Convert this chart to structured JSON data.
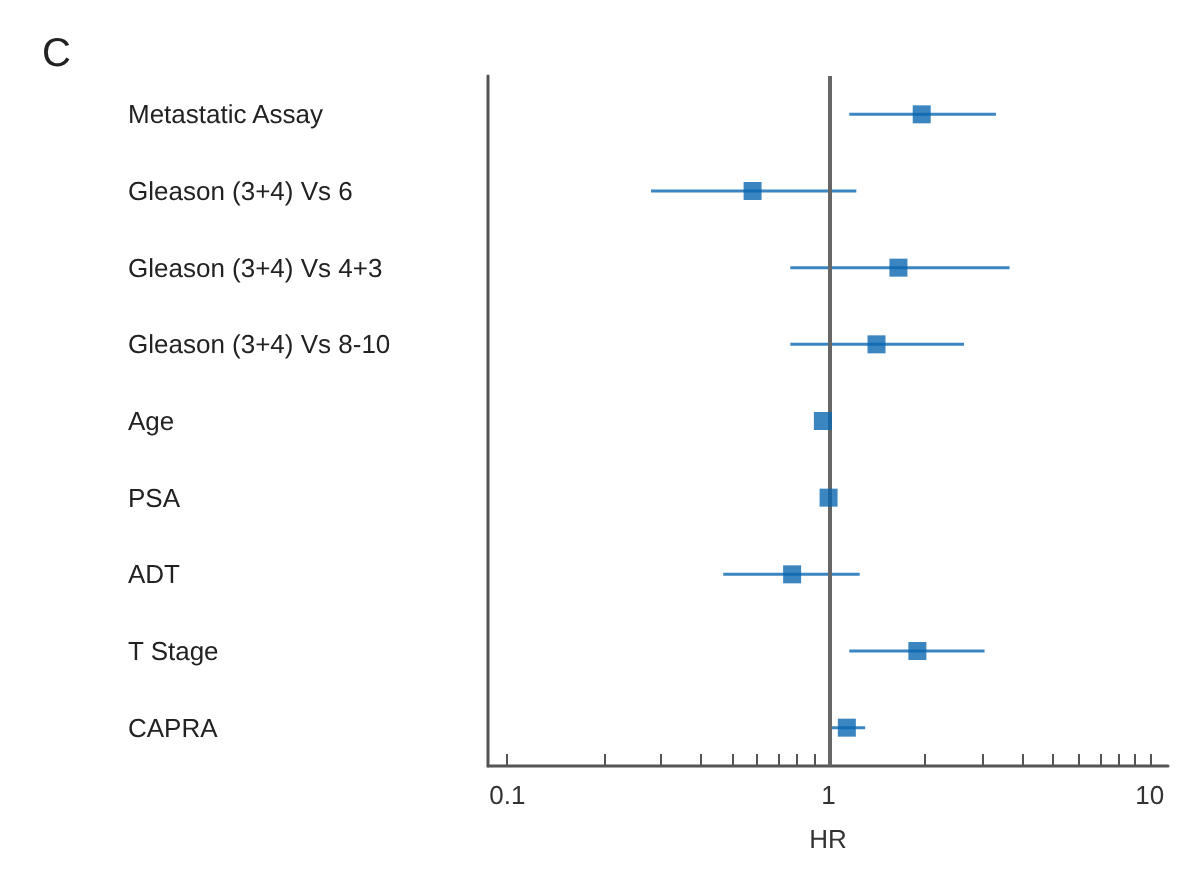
{
  "chart_data": {
    "type": "scatter",
    "orientation": "horizontal",
    "title": "C",
    "xlabel": "HR",
    "categories": [
      "Metastatic Assay",
      "Gleason (3+4) Vs 6",
      "Gleason (3+4) Vs 4+3",
      "Gleason (3+4) Vs 8-10",
      "Age",
      "PSA",
      "ADT",
      "T Stage",
      "CAPRA"
    ],
    "values": [
      1.95,
      0.58,
      1.65,
      1.41,
      0.96,
      1.0,
      0.77,
      1.89,
      1.14
    ],
    "errors": [
      [
        1.16,
        3.32
      ],
      [
        0.28,
        1.22
      ],
      [
        0.76,
        3.66
      ],
      [
        0.76,
        2.64
      ],
      null,
      null,
      [
        0.47,
        1.25
      ],
      [
        1.16,
        3.06
      ],
      [
        1.02,
        1.3
      ]
    ],
    "color": "#0a66b0",
    "marker": "square",
    "log": "x",
    "grid": false,
    "xlim": [
      0.087,
      11.4
    ],
    "xticks": [
      0.1,
      {
        "value": 0.2,
        "label": null
      },
      {
        "value": 0.3,
        "label": null
      },
      {
        "value": 0.4,
        "label": null
      },
      {
        "value": 0.5,
        "label": null
      },
      {
        "value": 0.6,
        "label": null
      },
      {
        "value": 0.7,
        "label": null
      },
      {
        "value": 0.8,
        "label": null
      },
      {
        "value": 0.9,
        "label": null
      },
      1,
      {
        "value": 2,
        "label": null
      },
      {
        "value": 3,
        "label": null
      },
      {
        "value": 4,
        "label": null
      },
      {
        "value": 5,
        "label": null
      },
      {
        "value": 6,
        "label": null
      },
      {
        "value": 7,
        "label": null
      },
      {
        "value": 8,
        "label": null
      },
      {
        "value": 9,
        "label": null
      },
      10
    ],
    "ref_lines": [
      {
        "axis": "x",
        "value": 1,
        "color": "#666666"
      }
    ]
  }
}
